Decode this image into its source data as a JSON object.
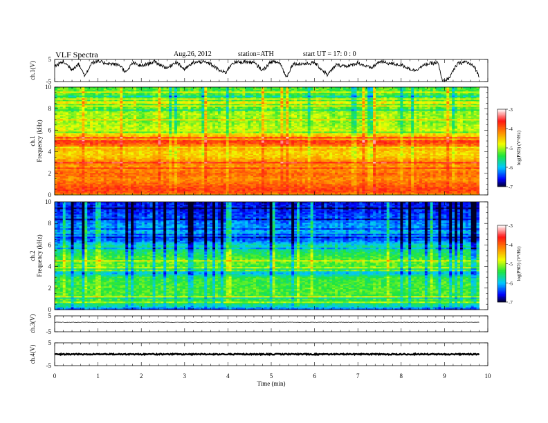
{
  "header": {
    "title": "VLF  Spectra",
    "date": "Aug.26, 2012",
    "station": "station=ATH",
    "start": "start  UT  =    17: 0   : 0"
  },
  "chart_data": [
    {
      "type": "line",
      "panel": "ch1-waveform",
      "ylabel": "ch.1(V)",
      "ylim": [
        -5,
        5
      ],
      "yticks": [
        "5",
        "-5"
      ],
      "x_range": [
        0,
        10
      ],
      "data_extent_min": 9.8,
      "note_series": "noisy waveform, mostly near +2 to +4 V with dips toward -5 V",
      "samples": [
        [
          0.0,
          2.0
        ],
        [
          0.2,
          4.0
        ],
        [
          0.4,
          0.5
        ],
        [
          0.55,
          3.0
        ],
        [
          0.7,
          -2.5
        ],
        [
          0.85,
          3.5
        ],
        [
          1.0,
          4.0
        ],
        [
          1.3,
          3.0
        ],
        [
          1.5,
          2.5
        ],
        [
          1.65,
          -1.0
        ],
        [
          1.8,
          3.5
        ],
        [
          2.0,
          2.0
        ],
        [
          2.3,
          4.0
        ],
        [
          2.6,
          1.0
        ],
        [
          2.8,
          4.0
        ],
        [
          3.0,
          0.5
        ],
        [
          3.2,
          3.5
        ],
        [
          3.4,
          4.0
        ],
        [
          3.6,
          3.0
        ],
        [
          3.8,
          0.0
        ],
        [
          3.95,
          -1.0
        ],
        [
          4.1,
          3.5
        ],
        [
          4.4,
          4.0
        ],
        [
          4.6,
          3.5
        ],
        [
          4.8,
          0.0
        ],
        [
          5.0,
          4.0
        ],
        [
          5.2,
          3.5
        ],
        [
          5.35,
          -3.0
        ],
        [
          5.5,
          3.0
        ],
        [
          5.8,
          3.0
        ],
        [
          6.0,
          3.5
        ],
        [
          6.3,
          -2.0
        ],
        [
          6.5,
          2.5
        ],
        [
          6.8,
          2.0
        ],
        [
          7.0,
          3.5
        ],
        [
          7.3,
          1.0
        ],
        [
          7.5,
          4.0
        ],
        [
          7.8,
          3.0
        ],
        [
          8.0,
          2.5
        ],
        [
          8.3,
          0.0
        ],
        [
          8.6,
          3.0
        ],
        [
          8.85,
          3.5
        ],
        [
          8.95,
          -5.0
        ],
        [
          9.1,
          -3.5
        ],
        [
          9.3,
          3.0
        ],
        [
          9.5,
          4.0
        ],
        [
          9.7,
          1.5
        ],
        [
          9.8,
          -3.0
        ]
      ]
    },
    {
      "type": "heatmap",
      "panel": "ch1-spectrogram",
      "ylabel": "ch.1 Frequency (kHz)",
      "ylim": [
        0,
        10
      ],
      "yticks": [
        "0",
        "2",
        "4",
        "6",
        "8",
        "10"
      ],
      "x_range": [
        0,
        10
      ],
      "data_extent_min": 9.8,
      "colorbar_label": "log(PSD) (V²/Hz)",
      "colorbar_ticks": [
        "-3",
        "-4",
        "-5",
        "-6",
        "-7"
      ],
      "colorbar_range": [
        -7,
        -3
      ],
      "profile_khz_vs_logpsd": [
        [
          0.0,
          -4.0
        ],
        [
          0.5,
          -3.8
        ],
        [
          1.0,
          -4.0
        ],
        [
          1.5,
          -4.2
        ],
        [
          2.0,
          -4.0
        ],
        [
          2.5,
          -4.3
        ],
        [
          3.0,
          -4.1
        ],
        [
          3.5,
          -4.5
        ],
        [
          4.0,
          -4.6
        ],
        [
          4.5,
          -4.2
        ],
        [
          5.0,
          -3.7
        ],
        [
          5.5,
          -4.5
        ],
        [
          6.0,
          -4.9
        ],
        [
          6.5,
          -5.0
        ],
        [
          7.0,
          -5.1
        ],
        [
          7.5,
          -5.0
        ],
        [
          8.0,
          -5.2
        ],
        [
          9.0,
          -5.3
        ],
        [
          10.0,
          -5.3
        ]
      ]
    },
    {
      "type": "heatmap",
      "panel": "ch2-spectrogram",
      "ylabel": "ch.2 Frequency (kHz)",
      "ylim": [
        0,
        10
      ],
      "yticks": [
        "0",
        "2",
        "4",
        "6",
        "8",
        "10"
      ],
      "x_range": [
        0,
        10
      ],
      "data_extent_min": 9.8,
      "colorbar_label": "log(PSD) (V²/Hz)",
      "colorbar_ticks": [
        "-3",
        "-4",
        "-5",
        "-6",
        "-7"
      ],
      "colorbar_range": [
        -7,
        -3
      ],
      "profile_khz_vs_logpsd": [
        [
          0.0,
          -6.5
        ],
        [
          0.3,
          -5.8
        ],
        [
          1.0,
          -5.3
        ],
        [
          2.0,
          -5.3
        ],
        [
          3.0,
          -5.4
        ],
        [
          3.4,
          -6.0
        ],
        [
          4.0,
          -5.3
        ],
        [
          4.5,
          -5.2
        ],
        [
          5.0,
          -5.4
        ],
        [
          5.5,
          -5.6
        ],
        [
          6.0,
          -5.8
        ],
        [
          6.5,
          -6.4
        ],
        [
          7.0,
          -6.0
        ],
        [
          8.0,
          -6.2
        ],
        [
          9.0,
          -6.5
        ],
        [
          10.0,
          -6.6
        ]
      ]
    },
    {
      "type": "line",
      "panel": "ch3-waveform",
      "ylabel": "ch.3(V)",
      "ylim": [
        -5,
        5
      ],
      "yticks": [
        "5",
        "-5"
      ],
      "x_range": [
        0,
        10
      ],
      "data_extent_min": 9.8,
      "level": 1.0
    },
    {
      "type": "line",
      "panel": "ch4-waveform",
      "ylabel": "ch.4(V)",
      "ylim": [
        -5,
        5
      ],
      "yticks": [
        "5",
        "-5"
      ],
      "x_range": [
        0,
        10
      ],
      "data_extent_min": 9.8,
      "level": 0.0
    }
  ],
  "x_axis": {
    "label": "Time  (min)",
    "ticks": [
      "0",
      "1",
      "2",
      "3",
      "4",
      "5",
      "6",
      "7",
      "8",
      "9",
      "10"
    ]
  },
  "palette": [
    "#ffffff",
    "#ff2020",
    "#ffff00",
    "#20e020",
    "#00e0ff",
    "#0000ff",
    "#000030"
  ]
}
